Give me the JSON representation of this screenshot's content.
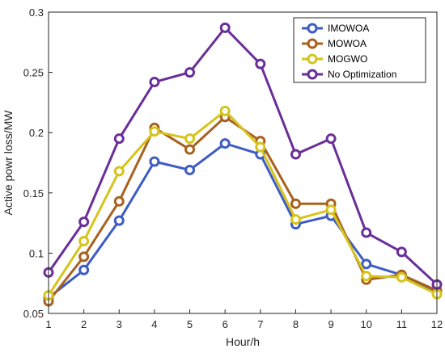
{
  "chart_data": {
    "type": "line",
    "title": "",
    "xlabel": "Hour/h",
    "ylabel": "Active powr loss/MW",
    "xlim": [
      1,
      12
    ],
    "ylim": [
      0.05,
      0.3
    ],
    "x": [
      1,
      2,
      3,
      4,
      5,
      6,
      7,
      8,
      9,
      10,
      11,
      12
    ],
    "x_ticks": [
      "1",
      "2",
      "3",
      "4",
      "5",
      "6",
      "7",
      "8",
      "9",
      "10",
      "11",
      "12"
    ],
    "y_ticks": [
      {
        "value": 0.05,
        "label": "0.05"
      },
      {
        "value": 0.1,
        "label": "0.1"
      },
      {
        "value": 0.15,
        "label": "0.15"
      },
      {
        "value": 0.2,
        "label": "0.2"
      },
      {
        "value": 0.25,
        "label": "0.25"
      },
      {
        "value": 0.3,
        "label": "0.3"
      }
    ],
    "grid": false,
    "legend_position": "top-right",
    "series": [
      {
        "name": "IMOWOA",
        "color": "#3e5cc4",
        "values": [
          0.063,
          0.086,
          0.127,
          0.176,
          0.169,
          0.191,
          0.182,
          0.124,
          0.131,
          0.091,
          0.082,
          0.068
        ]
      },
      {
        "name": "MOWOA",
        "color": "#a8611e",
        "values": [
          0.06,
          0.097,
          0.143,
          0.204,
          0.186,
          0.213,
          0.193,
          0.141,
          0.141,
          0.078,
          0.082,
          0.069
        ]
      },
      {
        "name": "MOGWO",
        "color": "#d6c41c",
        "values": [
          0.065,
          0.11,
          0.168,
          0.201,
          0.195,
          0.218,
          0.188,
          0.128,
          0.136,
          0.081,
          0.08,
          0.066
        ]
      },
      {
        "name": "No Optimization",
        "color": "#6a2f98",
        "values": [
          0.084,
          0.126,
          0.195,
          0.242,
          0.25,
          0.287,
          0.257,
          0.182,
          0.195,
          0.117,
          0.101,
          0.074
        ]
      }
    ]
  }
}
